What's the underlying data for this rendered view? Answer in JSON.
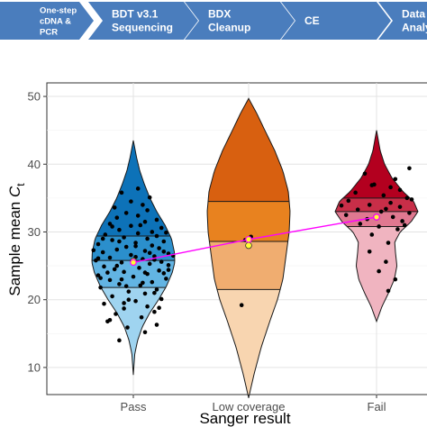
{
  "workflow": {
    "steps": [
      {
        "lines": [
          "One-step",
          "cDNA &",
          "PCR"
        ]
      },
      {
        "lines": [
          "BDT v3.1",
          "Sequencing"
        ]
      },
      {
        "lines": [
          "BDX",
          "Cleanup"
        ]
      },
      {
        "lines": [
          "CE"
        ]
      },
      {
        "lines": [
          "Data",
          "Analysis"
        ]
      }
    ],
    "color": "#4a7dbd"
  },
  "chart_data": {
    "type": "violin",
    "xlabel": "Sanger result",
    "ylabel_main": "Sample mean ",
    "ylabel_italic": "C",
    "ylabel_sub": "t",
    "categories": [
      "Pass",
      "Low coverage",
      "Fail"
    ],
    "ylim": [
      6,
      52
    ],
    "yticks": [
      10,
      20,
      30,
      40,
      50
    ],
    "grid": true,
    "mean_line_color": "#ff00ff",
    "mean_marker_color": "#ffff33",
    "groups": [
      {
        "name": "Pass",
        "colors": [
          "#9fd4f0",
          "#62b4e3",
          "#2b8fcc",
          "#0d72b8"
        ],
        "quartiles": [
          21.8,
          25.8,
          29.4
        ],
        "median": 25.8,
        "mean": 25.5,
        "extra_marker": 25.7,
        "range": [
          8.9,
          43.5
        ],
        "profile": [
          [
            8.9,
            0
          ],
          [
            12,
            0.4
          ],
          [
            14,
            1.2
          ],
          [
            16,
            2.5
          ],
          [
            18,
            4.5
          ],
          [
            20,
            7
          ],
          [
            22,
            9.2
          ],
          [
            24,
            10.8
          ],
          [
            25.5,
            11.5
          ],
          [
            27,
            11.4
          ],
          [
            29,
            10.6
          ],
          [
            31,
            8.8
          ],
          [
            33,
            6.5
          ],
          [
            35,
            4.6
          ],
          [
            37,
            3.1
          ],
          [
            39,
            1.8
          ],
          [
            41,
            0.9
          ],
          [
            43.5,
            0
          ]
        ],
        "points": [
          [
            -0.12,
            14.0
          ],
          [
            0.1,
            15.2
          ],
          [
            -0.05,
            15.9
          ],
          [
            0.2,
            16.3
          ],
          [
            -0.22,
            16.8
          ],
          [
            0.07,
            17.4
          ],
          [
            -0.15,
            17.9
          ],
          [
            0.18,
            18.2
          ],
          [
            -0.08,
            18.7
          ],
          [
            0.12,
            19.0
          ],
          [
            -0.25,
            19.4
          ],
          [
            0.02,
            19.8
          ],
          [
            0.24,
            20.1
          ],
          [
            -0.18,
            20.5
          ],
          [
            0.1,
            20.9
          ],
          [
            -0.04,
            21.2
          ],
          [
            0.2,
            21.5
          ],
          [
            -0.28,
            21.8
          ],
          [
            0.06,
            22.1
          ],
          [
            -0.12,
            22.3
          ],
          [
            0.16,
            22.6
          ],
          [
            -0.2,
            22.9
          ],
          [
            0.28,
            23.1
          ],
          [
            0.0,
            23.4
          ],
          [
            -0.3,
            23.6
          ],
          [
            0.12,
            23.8
          ],
          [
            -0.08,
            24.1
          ],
          [
            0.22,
            24.3
          ],
          [
            -0.16,
            24.5
          ],
          [
            0.05,
            24.7
          ],
          [
            -0.25,
            24.9
          ],
          [
            0.3,
            25.1
          ],
          [
            0.14,
            25.3
          ],
          [
            -0.1,
            25.5
          ],
          [
            0.24,
            25.6
          ],
          [
            -0.32,
            25.8
          ],
          [
            0.08,
            26.0
          ],
          [
            -0.2,
            26.2
          ],
          [
            0.18,
            26.4
          ],
          [
            -0.02,
            26.6
          ],
          [
            0.3,
            26.8
          ],
          [
            -0.26,
            27.0
          ],
          [
            0.1,
            27.2
          ],
          [
            -0.14,
            27.4
          ],
          [
            0.22,
            27.6
          ],
          [
            -0.06,
            27.8
          ],
          [
            0.16,
            28.0
          ],
          [
            -0.3,
            28.2
          ],
          [
            0.02,
            28.4
          ],
          [
            0.26,
            28.6
          ],
          [
            -0.18,
            28.8
          ],
          [
            0.12,
            29.0
          ],
          [
            -0.08,
            29.2
          ],
          [
            0.2,
            29.4
          ],
          [
            -0.24,
            29.6
          ],
          [
            0.04,
            29.8
          ],
          [
            0.16,
            30.0
          ],
          [
            -0.12,
            30.3
          ],
          [
            0.24,
            30.6
          ],
          [
            -0.02,
            30.9
          ],
          [
            -0.2,
            31.2
          ],
          [
            0.1,
            31.5
          ],
          [
            0.2,
            31.8
          ],
          [
            -0.14,
            32.1
          ],
          [
            0.04,
            32.4
          ],
          [
            -0.06,
            32.8
          ],
          [
            0.12,
            33.2
          ],
          [
            -0.16,
            33.6
          ],
          [
            0.08,
            34.0
          ],
          [
            -0.02,
            34.5
          ],
          [
            0.14,
            35.1
          ],
          [
            -0.1,
            35.8
          ],
          [
            0.04,
            36.4
          ],
          [
            -0.22,
            24.0
          ],
          [
            0.26,
            23.9
          ],
          [
            -0.34,
            27.3
          ],
          [
            0.34,
            26.5
          ],
          [
            -0.04,
            20.0
          ],
          [
            0.18,
            21.0
          ],
          [
            -0.14,
            25.0
          ],
          [
            0.02,
            27.9
          ],
          [
            -0.26,
            29.0
          ],
          [
            0.28,
            29.9
          ],
          [
            -0.1,
            23.0
          ],
          [
            0.08,
            22.5
          ],
          [
            0.3,
            24.4
          ],
          [
            -0.28,
            23.2
          ],
          [
            0.14,
            26.9
          ],
          [
            -0.18,
            30.8
          ],
          [
            0.06,
            31.0
          ],
          [
            -0.08,
            19.5
          ],
          [
            0.22,
            18.8
          ],
          [
            -0.2,
            17.0
          ],
          [
            0.02,
            26.3
          ],
          [
            -0.12,
            28.6
          ],
          [
            0.18,
            25.9
          ],
          [
            -0.3,
            26.1
          ],
          [
            0.1,
            24.0
          ],
          [
            0.26,
            27.1
          ],
          [
            -0.06,
            22.0
          ]
        ]
      },
      {
        "name": "Low coverage",
        "colors": [
          "#f8d5b0",
          "#f0ad70",
          "#e8821f",
          "#d86010"
        ],
        "quartiles": [
          21.5,
          28.6,
          34.5
        ],
        "median": 28.6,
        "mean": 28.9,
        "extra_marker": 28.0,
        "range": [
          5.5,
          49.7
        ],
        "profile": [
          [
            5.5,
            0
          ],
          [
            9,
            0.6
          ],
          [
            13,
            1.4
          ],
          [
            17,
            2.4
          ],
          [
            20,
            3.2
          ],
          [
            23,
            3.8
          ],
          [
            26,
            4.1
          ],
          [
            28,
            4.3
          ],
          [
            30,
            4.5
          ],
          [
            33,
            4.6
          ],
          [
            36,
            4.4
          ],
          [
            39,
            3.8
          ],
          [
            42,
            2.9
          ],
          [
            45,
            1.8
          ],
          [
            47.5,
            0.9
          ],
          [
            49.7,
            0
          ]
        ],
        "points": [
          [
            -0.06,
            19.2
          ],
          [
            0.02,
            29.3
          ],
          [
            -0.03,
            28.8
          ]
        ]
      },
      {
        "name": "Fail",
        "colors": [
          "#f0b4c0",
          "#e07890",
          "#c82e48",
          "#b3001f"
        ],
        "quartiles": [
          30.8,
          33.0,
          35.0
        ],
        "median": 33.0,
        "mean": 32.2,
        "extra_marker": 32.2,
        "range": [
          16.8,
          45.0
        ],
        "profile": [
          [
            16.8,
            0
          ],
          [
            19,
            1.5
          ],
          [
            21,
            3.3
          ],
          [
            23,
            4.9
          ],
          [
            25,
            5.6
          ],
          [
            27,
            5.2
          ],
          [
            28.5,
            5.0
          ],
          [
            30,
            6.5
          ],
          [
            31.5,
            9.5
          ],
          [
            33,
            11.4
          ],
          [
            34.5,
            10.2
          ],
          [
            36,
            7.2
          ],
          [
            38,
            4.2
          ],
          [
            40,
            2.2
          ],
          [
            42,
            1.0
          ],
          [
            45,
            0
          ]
        ],
        "points": [
          [
            -0.1,
            38.6
          ],
          [
            0.16,
            37.8
          ],
          [
            -0.04,
            36.9
          ],
          [
            0.2,
            36.2
          ],
          [
            -0.18,
            35.8
          ],
          [
            0.06,
            35.4
          ],
          [
            0.26,
            35.0
          ],
          [
            -0.24,
            34.6
          ],
          [
            0.12,
            34.3
          ],
          [
            -0.06,
            34.0
          ],
          [
            0.2,
            33.7
          ],
          [
            -0.16,
            33.3
          ],
          [
            0.04,
            33.0
          ],
          [
            0.28,
            32.8
          ],
          [
            -0.26,
            32.5
          ],
          [
            0.14,
            32.2
          ],
          [
            -0.08,
            31.9
          ],
          [
            0.22,
            31.6
          ],
          [
            -0.14,
            31.2
          ],
          [
            0.02,
            30.8
          ],
          [
            0.18,
            30.4
          ],
          [
            -0.04,
            29.6
          ],
          [
            0.1,
            28.4
          ],
          [
            -0.06,
            27.1
          ],
          [
            0.08,
            25.6
          ],
          [
            0.02,
            24.2
          ],
          [
            0.16,
            23.0
          ],
          [
            0.1,
            21.3
          ],
          [
            0.28,
            39.4
          ],
          [
            -0.02,
            37.0
          ],
          [
            0.3,
            34.8
          ],
          [
            -0.3,
            33.9
          ],
          [
            0.08,
            33.4
          ],
          [
            0.24,
            31.0
          ],
          [
            0.12,
            36.6
          ]
        ]
      }
    ]
  }
}
